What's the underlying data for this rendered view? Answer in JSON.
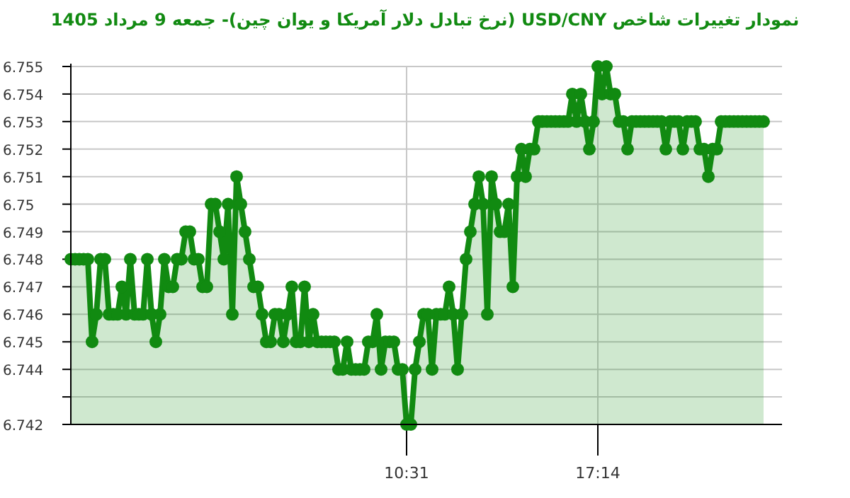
{
  "chart_data": {
    "type": "area",
    "title": "نمودار تغییرات شاخص USD/CNY (نرخ تبادل دلار آمریکا و یوان چین)- جمعه  9 مرداد 1405",
    "categories": [
      null,
      null,
      null,
      null,
      null,
      null,
      null,
      null,
      null,
      null,
      null,
      null,
      null,
      null,
      null,
      null,
      null,
      null,
      null,
      null,
      null,
      null,
      null,
      null,
      null,
      null,
      null,
      null,
      null,
      null,
      null,
      null,
      null,
      null,
      null,
      null,
      null,
      null,
      null,
      null,
      null,
      null,
      null,
      null,
      null,
      null,
      null,
      null,
      null,
      null,
      null,
      null,
      null,
      null,
      null,
      null,
      null,
      null,
      null,
      null,
      null,
      null,
      null,
      null,
      null,
      null,
      null,
      null,
      null,
      null,
      null,
      null,
      null,
      null,
      null,
      null,
      null,
      null,
      null,
      "10:31",
      null,
      null,
      null,
      null,
      null,
      null,
      null,
      null,
      null,
      null,
      null,
      null,
      null,
      null,
      null,
      null,
      null,
      null,
      null,
      null,
      null,
      null,
      null,
      null,
      null,
      null,
      null,
      null,
      null,
      null,
      null,
      null,
      null,
      null,
      null,
      null,
      null,
      null,
      null,
      null,
      null,
      null,
      null,
      null,
      "17:14",
      null,
      null,
      null,
      null,
      null,
      null,
      null,
      null,
      null,
      null,
      null,
      null,
      null,
      null,
      null,
      null,
      null,
      null,
      null,
      null,
      null,
      null,
      null,
      null,
      null,
      null,
      null,
      null,
      null,
      null,
      null,
      null,
      null,
      null,
      null,
      null,
      null,
      null,
      null
    ],
    "series": [
      {
        "color": "#118a11",
        "values": [
          6.748,
          6.748,
          6.748,
          6.748,
          6.748,
          6.745,
          6.746,
          6.748,
          6.748,
          6.746,
          6.746,
          6.746,
          6.747,
          6.746,
          6.748,
          6.746,
          6.746,
          6.746,
          6.748,
          6.746,
          6.745,
          6.746,
          6.748,
          6.747,
          6.747,
          6.748,
          6.748,
          6.749,
          6.749,
          6.748,
          6.748,
          6.747,
          6.747,
          6.75,
          6.75,
          6.749,
          6.748,
          6.75,
          6.746,
          6.751,
          6.75,
          6.749,
          6.748,
          6.747,
          6.747,
          6.746,
          6.745,
          6.745,
          6.746,
          6.746,
          6.745,
          6.746,
          6.747,
          6.745,
          6.745,
          6.747,
          6.745,
          6.746,
          6.745,
          6.745,
          6.745,
          6.745,
          6.745,
          6.744,
          6.744,
          6.745,
          6.744,
          6.744,
          6.744,
          6.744,
          6.745,
          6.745,
          6.746,
          6.744,
          6.745,
          6.745,
          6.745,
          6.744,
          6.744,
          6.742,
          6.742,
          6.744,
          6.745,
          6.746,
          6.746,
          6.744,
          6.746,
          6.746,
          6.746,
          6.747,
          6.746,
          6.744,
          6.746,
          6.748,
          6.749,
          6.75,
          6.751,
          6.75,
          6.746,
          6.751,
          6.75,
          6.749,
          6.749,
          6.75,
          6.747,
          6.751,
          6.752,
          6.751,
          6.752,
          6.752,
          6.753,
          6.753,
          6.753,
          6.753,
          6.753,
          6.753,
          6.753,
          6.753,
          6.754,
          6.753,
          6.754,
          6.753,
          6.752,
          6.753,
          6.755,
          6.754,
          6.755,
          6.754,
          6.754,
          6.753,
          6.753,
          6.752,
          6.753,
          6.753,
          6.753,
          6.753,
          6.753,
          6.753,
          6.753,
          6.753,
          6.752,
          6.753,
          6.753,
          6.753,
          6.752,
          6.753,
          6.753,
          6.753,
          6.752,
          6.752,
          6.751,
          6.752,
          6.752,
          6.753,
          6.753,
          6.753,
          6.753,
          6.753,
          6.753,
          6.753,
          6.753,
          6.753,
          6.753,
          6.753
        ]
      }
    ],
    "ylim": [
      6.742,
      6.755
    ],
    "yticks": [
      6.742,
      {
        "value": 6.743,
        "label": null
      },
      6.744,
      6.745,
      6.746,
      6.747,
      6.748,
      6.749,
      6.75,
      6.751,
      6.752,
      6.753,
      6.754,
      6.755
    ],
    "grid": true,
    "marker": "circle",
    "line_style": "solid"
  }
}
